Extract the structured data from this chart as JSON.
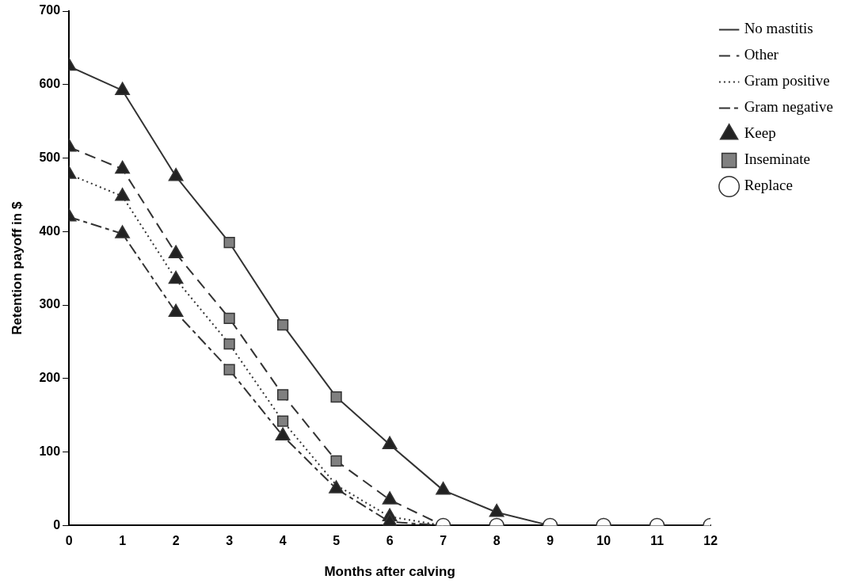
{
  "chart_data": {
    "type": "line",
    "xlabel": "Months after calving",
    "ylabel": "Retention payoff in $",
    "xlim": [
      0,
      12
    ],
    "xticks": [
      0,
      1,
      2,
      3,
      4,
      5,
      6,
      7,
      8,
      9,
      10,
      11,
      12
    ],
    "ylim": [
      0,
      700
    ],
    "yticks": [
      0,
      100,
      200,
      300,
      400,
      500,
      600,
      700
    ],
    "grid": false,
    "legend": "top right",
    "marker": "none",
    "series": [
      {
        "name": "No mastitis",
        "color": "#333333",
        "line_style": "solid",
        "x": [
          0,
          1,
          2,
          3,
          4,
          5,
          6,
          7,
          8,
          9,
          10,
          11,
          12
        ],
        "values": [
          625,
          592,
          475,
          385,
          273,
          175,
          110,
          48,
          18,
          0,
          0,
          0,
          0
        ]
      },
      {
        "name": "Other",
        "color": "#333333",
        "line_style": "dashed",
        "x": [
          0,
          1,
          2,
          3,
          4,
          5,
          6,
          7
        ],
        "values": [
          515,
          485,
          370,
          282,
          178,
          88,
          35,
          0
        ]
      },
      {
        "name": "Gram positive",
        "color": "#333333",
        "line_style": "dotted",
        "x": [
          0,
          1,
          2,
          3,
          4,
          5,
          6,
          7
        ],
        "values": [
          478,
          448,
          335,
          247,
          142,
          55,
          12,
          0
        ]
      },
      {
        "name": "Gram negative",
        "color": "#333333",
        "line_style": "dashdot",
        "x": [
          0,
          1,
          2,
          3,
          4,
          5,
          6,
          7
        ],
        "values": [
          420,
          397,
          290,
          212,
          122,
          50,
          5,
          0
        ]
      },
      {
        "name": "Keep",
        "type": "scatter",
        "marker": "triangle",
        "color": "#222222",
        "x": [
          0,
          1,
          2,
          6,
          7,
          8,
          0,
          1,
          2,
          6,
          0,
          1,
          2,
          5,
          6,
          0,
          1,
          2,
          4,
          5,
          6
        ],
        "values": [
          625,
          592,
          475,
          110,
          48,
          18,
          515,
          485,
          370,
          35,
          478,
          448,
          335,
          null,
          12,
          420,
          397,
          290,
          122,
          50,
          5
        ]
      },
      {
        "name": "Inseminate",
        "type": "scatter",
        "marker": "square",
        "color": "#808080",
        "x": [
          3,
          4,
          5,
          3,
          4,
          5,
          3,
          4,
          3
        ],
        "values": [
          385,
          273,
          175,
          282,
          178,
          88,
          247,
          142,
          212
        ]
      },
      {
        "name": "Replace",
        "type": "scatter",
        "marker": "circle",
        "color": "#ffffff",
        "x": [
          7,
          8,
          9,
          10,
          11,
          12
        ],
        "values": [
          0,
          0,
          0,
          0,
          0,
          0
        ]
      }
    ]
  }
}
